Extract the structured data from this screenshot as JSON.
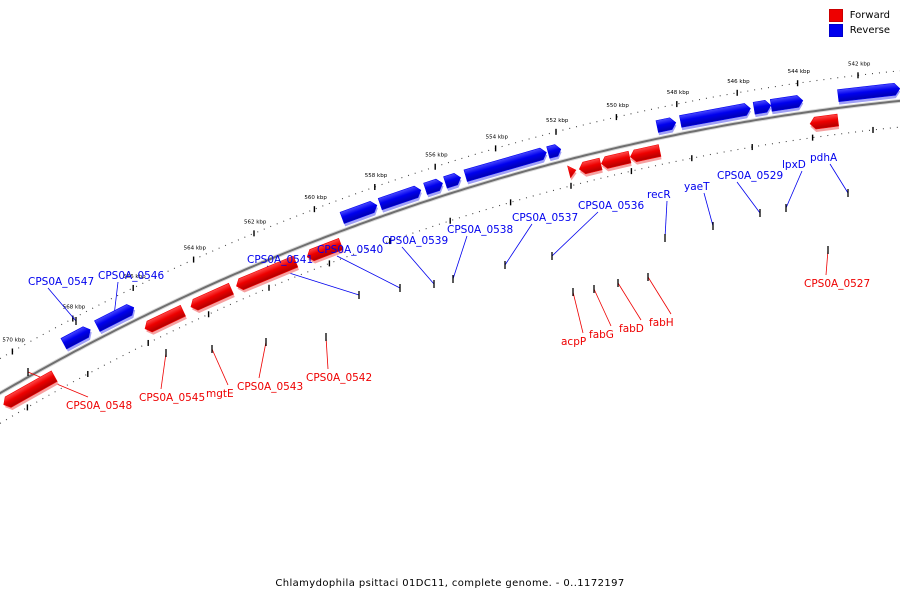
{
  "caption": "Chlamydophila psittaci 01DC11, complete genome. - 0..1172197",
  "legend": {
    "forward_label": "Forward",
    "reverse_label": "Reverse",
    "forward_color": "#ee0000",
    "reverse_color": "#0000ee"
  },
  "ruler": {
    "unit": "kbp",
    "ticks": [
      {
        "kbp": 542,
        "label": "542 kbp"
      },
      {
        "kbp": 544,
        "label": "544 kbp"
      },
      {
        "kbp": 546,
        "label": "546 kbp"
      },
      {
        "kbp": 548,
        "label": "548 kbp"
      },
      {
        "kbp": 550,
        "label": "550 kbp"
      },
      {
        "kbp": 552,
        "label": "552 kbp"
      },
      {
        "kbp": 554,
        "label": "554 kbp"
      },
      {
        "kbp": 556,
        "label": "556 kbp"
      },
      {
        "kbp": 558,
        "label": "558 kbp"
      },
      {
        "kbp": 560,
        "label": "560 kbp"
      },
      {
        "kbp": 562,
        "label": "562 kbp"
      },
      {
        "kbp": 564,
        "label": "564 kbp"
      },
      {
        "kbp": 566,
        "label": "566 kbp"
      },
      {
        "kbp": 568,
        "label": "568 kbp"
      },
      {
        "kbp": 570,
        "label": "570 kbp"
      }
    ]
  },
  "genes": [
    {
      "name": "CPS0A_0548",
      "strand": "forward"
    },
    {
      "name": "CPS0A_0547",
      "strand": "reverse"
    },
    {
      "name": "CPS0A_0546",
      "strand": "reverse"
    },
    {
      "name": "CPS0A_0545",
      "strand": "forward"
    },
    {
      "name": "mgtE",
      "strand": "forward"
    },
    {
      "name": "CPS0A_0543",
      "strand": "forward"
    },
    {
      "name": "CPS0A_0542",
      "strand": "forward"
    },
    {
      "name": "CPS0A_0541",
      "strand": "reverse"
    },
    {
      "name": "CPS0A_0540",
      "strand": "reverse"
    },
    {
      "name": "CPS0A_0539",
      "strand": "reverse"
    },
    {
      "name": "CPS0A_0538",
      "strand": "reverse"
    },
    {
      "name": "CPS0A_0537",
      "strand": "reverse"
    },
    {
      "name": "CPS0A_0536",
      "strand": "reverse"
    },
    {
      "name": "acpP",
      "strand": "forward"
    },
    {
      "name": "fabG",
      "strand": "forward"
    },
    {
      "name": "fabD",
      "strand": "forward"
    },
    {
      "name": "fabH",
      "strand": "forward"
    },
    {
      "name": "recR",
      "strand": "reverse"
    },
    {
      "name": "yaeT",
      "strand": "reverse"
    },
    {
      "name": "CPS0A_0529",
      "strand": "reverse"
    },
    {
      "name": "lpxD",
      "strand": "reverse"
    },
    {
      "name": "pdhA",
      "strand": "reverse"
    },
    {
      "name": "CPS0A_0527",
      "strand": "forward"
    }
  ]
}
